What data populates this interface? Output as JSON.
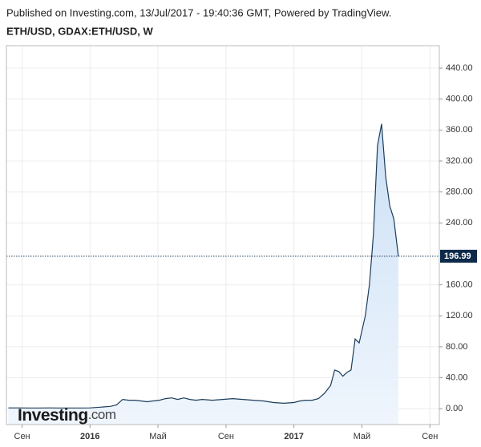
{
  "chart_data": {
    "type": "area",
    "title": "Published on Investing.com, 13/Jul/2017 - 19:40:36 GMT, Powered by TradingView.",
    "subtitle": "ETH/USD, GDAX:ETH/USD, W",
    "watermark": "Investing",
    "watermark_suffix": ".com",
    "series": [
      {
        "name": "ETH/USD",
        "color": "#1c3d5a",
        "fill": "#d6e7f8",
        "x": [
          2015.6,
          2015.65,
          2015.7,
          2015.75,
          2015.8,
          2015.85,
          2015.9,
          2015.95,
          2016.0,
          2016.05,
          2016.1,
          2016.13,
          2016.16,
          2016.19,
          2016.22,
          2016.25,
          2016.28,
          2016.31,
          2016.34,
          2016.37,
          2016.4,
          2016.43,
          2016.46,
          2016.49,
          2016.52,
          2016.55,
          2016.6,
          2016.65,
          2016.7,
          2016.75,
          2016.8,
          2016.85,
          2016.9,
          2016.95,
          2017.0,
          2017.03,
          2017.06,
          2017.09,
          2017.12,
          2017.15,
          2017.18,
          2017.2,
          2017.22,
          2017.24,
          2017.26,
          2017.28,
          2017.3,
          2017.32,
          2017.35,
          2017.37,
          2017.39,
          2017.41,
          2017.43,
          2017.45,
          2017.47,
          2017.49,
          2017.512
        ],
        "values": [
          1,
          1,
          0.9,
          0.9,
          1,
          0.9,
          0.9,
          0.9,
          1,
          2,
          3,
          5,
          12,
          11,
          11,
          10,
          9,
          10,
          11,
          13,
          14,
          12,
          14,
          12,
          11,
          12,
          11,
          12,
          13,
          12,
          11,
          10,
          8,
          7,
          8,
          10,
          11,
          11,
          13,
          20,
          30,
          50,
          48,
          42,
          47,
          50,
          90,
          85,
          120,
          160,
          225,
          340,
          368,
          300,
          262,
          245,
          196.99
        ]
      }
    ],
    "xlim": [
      2015.59,
      2017.713
    ],
    "xticks": [
      {
        "value": 2015.667,
        "label": "Сен"
      },
      2016,
      {
        "value": 2016.333,
        "label": "Май"
      },
      {
        "value": 2016.667,
        "label": "Сен"
      },
      2017,
      {
        "value": 2017.333,
        "label": "Май"
      },
      {
        "value": 2017.667,
        "label": "Сен"
      }
    ],
    "ylim": [
      -20.5,
      469
    ],
    "yticks": [
      {
        "value": 0,
        "label": "0.00"
      },
      {
        "value": 40,
        "label": "40.00"
      },
      {
        "value": 80,
        "label": "80.00"
      },
      {
        "value": 120,
        "label": "120.00"
      },
      {
        "value": 160,
        "label": "160.00"
      },
      {
        "value": 240,
        "label": "240.00"
      },
      {
        "value": 280,
        "label": "280.00"
      },
      {
        "value": 320,
        "label": "320.00"
      },
      {
        "value": 360,
        "label": "360.00"
      },
      {
        "value": 400,
        "label": "400.00"
      },
      {
        "value": 440,
        "label": "440.00"
      }
    ],
    "grid": true
  }
}
